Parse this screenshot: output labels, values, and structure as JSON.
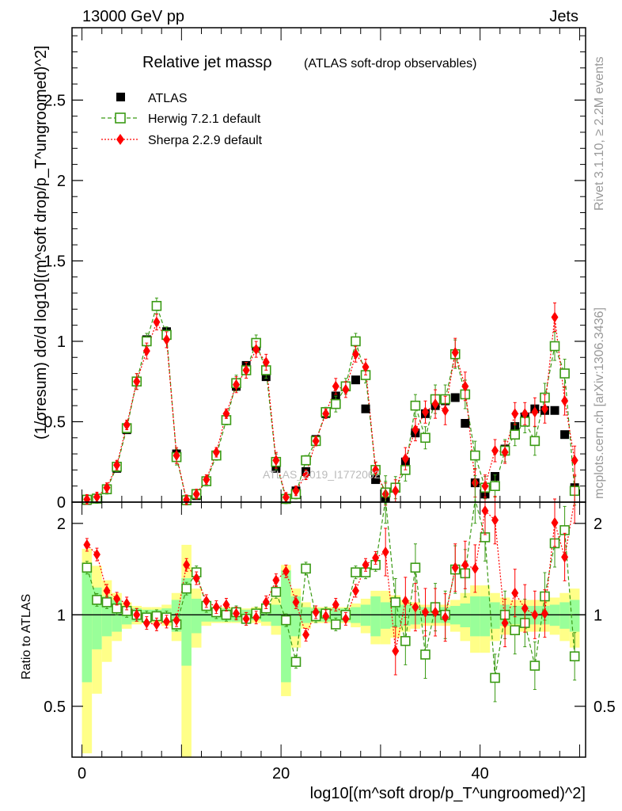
{
  "header": {
    "energy_label": "13000 GeV pp",
    "category_label": "Jets"
  },
  "side_labels": {
    "rivet": "Rivet 3.1.10, ≥ 2.2M events",
    "mcplots": "mcplots.cern.ch [arXiv:1306.3436]"
  },
  "colors": {
    "data": "#000000",
    "herwig": "#3a9a14",
    "sherpa": "#ff0000",
    "band_green": "#99ff99",
    "band_yellow": "#ffff88"
  },
  "chart_data": {
    "type": "scatter",
    "title": "Relative jet massρ",
    "subtitle": "(ATLAS soft-drop observables)",
    "watermark": "ATLAS_2019_I1772062",
    "xlabel": "log10[(m^soft drop/p_T^ungroomed)^2]",
    "ylabel": "(1/σresum) dσ/d log10[(m^soft drop/p_T^ungroomed)^2]",
    "ratio_ylabel": "Ratio to ATLAS",
    "xlim": [
      -1,
      50.6
    ],
    "ylim": [
      0,
      2.95
    ],
    "ratio_ylim": [
      0.34,
      2.35
    ],
    "x_ticks": [
      0,
      20,
      40
    ],
    "y_ticks": [
      0,
      0.5,
      1,
      1.5,
      2,
      2.5
    ],
    "y_tick_labels": [
      "0",
      "0.5",
      "1",
      "1.5",
      "2",
      "2.5"
    ],
    "ratio_ticks": [
      0.5,
      1,
      2
    ],
    "ratio_tick_labels": [
      "0.5",
      "1",
      "2"
    ],
    "legend": [
      "ATLAS",
      "Herwig 7.2.1 default",
      "Sherpa 2.2.9 default"
    ],
    "legend_position": "top-left",
    "x": [
      0.5,
      1.5,
      2.5,
      3.5,
      4.5,
      5.5,
      6.5,
      7.5,
      8.5,
      9.5,
      10.5,
      11.5,
      12.5,
      13.5,
      14.5,
      15.5,
      16.5,
      17.5,
      18.5,
      19.5,
      20.5,
      21.5,
      22.5,
      23.5,
      24.5,
      25.5,
      26.5,
      27.5,
      28.5,
      29.5,
      30.5,
      31.5,
      32.5,
      33.5,
      34.5,
      35.5,
      36.5,
      37.5,
      38.5,
      39.5,
      40.5,
      41.5,
      42.5,
      43.5,
      44.5,
      45.5,
      46.5,
      47.5,
      48.5,
      49.5
    ],
    "series": [
      {
        "name": "ATLAS",
        "values": [
          0.01,
          0.02,
          0.08,
          0.21,
          0.45,
          0.75,
          1.01,
          1.22,
          1.06,
          0.3,
          0.01,
          0.04,
          0.13,
          0.29,
          0.51,
          0.72,
          0.85,
          0.97,
          0.78,
          0.21,
          0.02,
          0.07,
          0.19,
          0.39,
          0.55,
          0.66,
          0.72,
          0.76,
          0.58,
          0.14,
          0.03,
          0.09,
          0.25,
          0.43,
          0.55,
          0.6,
          0.63,
          0.65,
          0.49,
          0.12,
          0.05,
          0.16,
          0.33,
          0.47,
          0.53,
          0.58,
          0.57,
          0.57,
          0.42,
          0.09
        ]
      },
      {
        "name": "Herwig 7.2.1 default",
        "values": [
          0.015,
          0.022,
          0.08,
          0.22,
          0.46,
          0.75,
          1.0,
          1.22,
          1.04,
          0.28,
          0.012,
          0.05,
          0.13,
          0.29,
          0.51,
          0.74,
          0.82,
          0.99,
          0.82,
          0.25,
          0.02,
          0.05,
          0.26,
          0.38,
          0.56,
          0.61,
          0.72,
          1.0,
          0.79,
          0.2,
          0.06,
          0.09,
          0.2,
          0.6,
          0.4,
          0.64,
          0.64,
          0.92,
          0.67,
          0.29,
          0.09,
          0.1,
          0.32,
          0.42,
          0.5,
          0.38,
          0.65,
          0.97,
          0.8,
          0.07
        ]
      },
      {
        "name": "Sherpa 2.2.9 default",
        "values": [
          0.017,
          0.032,
          0.09,
          0.23,
          0.48,
          0.75,
          0.94,
          1.12,
          1.01,
          0.29,
          0.015,
          0.05,
          0.14,
          0.31,
          0.55,
          0.73,
          0.82,
          0.95,
          0.87,
          0.26,
          0.03,
          0.07,
          0.17,
          0.38,
          0.55,
          0.72,
          0.7,
          0.92,
          0.84,
          0.2,
          0.05,
          0.07,
          0.27,
          0.45,
          0.56,
          0.61,
          0.57,
          0.93,
          0.72,
          0.12,
          0.1,
          0.32,
          0.31,
          0.55,
          0.55,
          0.56,
          0.58,
          1.15,
          0.63,
          0.26
        ]
      }
    ],
    "herwig_ratio": [
      1.43,
      1.12,
      1.1,
      1.05,
      1.03,
      1.0,
      0.98,
      0.99,
      0.98,
      0.93,
      1.22,
      1.38,
      1.07,
      1.02,
      1.0,
      1.02,
      0.97,
      1.01,
      1.05,
      1.19,
      0.96,
      0.7,
      1.42,
      0.99,
      1.01,
      0.93,
      1.0,
      1.38,
      1.38,
      1.46,
      2.8,
      1.1,
      0.82,
      1.43,
      0.74,
      1.06,
      1.0,
      1.41,
      1.37,
      2.4,
      1.8,
      0.62,
      1.0,
      0.89,
      0.94,
      0.68,
      1.15,
      1.72,
      1.9,
      0.73
    ],
    "sherpa_ratio": [
      1.7,
      1.58,
      1.2,
      1.13,
      1.09,
      1.0,
      0.94,
      0.93,
      0.95,
      0.96,
      1.46,
      1.32,
      1.11,
      1.06,
      1.08,
      1.01,
      0.97,
      0.98,
      1.1,
      1.3,
      1.39,
      1.1,
      0.86,
      1.02,
      0.99,
      1.08,
      0.97,
      1.2,
      1.46,
      1.54,
      1.61,
      0.76,
      1.11,
      1.06,
      1.02,
      1.02,
      0.98,
      1.43,
      1.46,
      1.42,
      2.2,
      2.05,
      0.94,
      1.18,
      1.05,
      1.0,
      1.01,
      2.01,
      1.55,
      2.9
    ],
    "band_inner": [
      0.4,
      0.23,
      0.15,
      0.12,
      0.07,
      0.05,
      0.04,
      0.04,
      0.05,
      0.12,
      0.32,
      0.13,
      0.05,
      0.05,
      0.05,
      0.05,
      0.04,
      0.04,
      0.05,
      0.08,
      0.4,
      0.15,
      0.06,
      0.05,
      0.05,
      0.05,
      0.05,
      0.06,
      0.08,
      0.15,
      0.1,
      0.09,
      0.08,
      0.07,
      0.06,
      0.06,
      0.06,
      0.07,
      0.09,
      0.15,
      0.15,
      0.1,
      0.08,
      0.07,
      0.07,
      0.07,
      0.07,
      0.08,
      0.1,
      0.12
    ],
    "band_outer": [
      0.65,
      0.45,
      0.3,
      0.18,
      0.1,
      0.07,
      0.06,
      0.06,
      0.08,
      0.18,
      0.7,
      0.22,
      0.08,
      0.06,
      0.06,
      0.06,
      0.05,
      0.06,
      0.08,
      0.14,
      0.46,
      0.22,
      0.1,
      0.06,
      0.06,
      0.06,
      0.06,
      0.09,
      0.13,
      0.2,
      0.2,
      0.16,
      0.12,
      0.1,
      0.08,
      0.08,
      0.08,
      0.12,
      0.18,
      0.25,
      0.25,
      0.18,
      0.14,
      0.12,
      0.12,
      0.12,
      0.12,
      0.14,
      0.18,
      0.22
    ]
  }
}
